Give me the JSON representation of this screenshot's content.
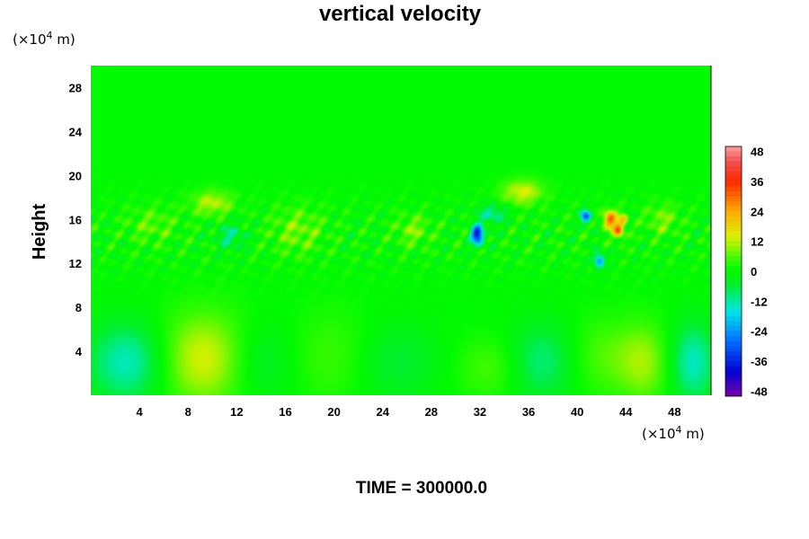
{
  "chart_data": {
    "type": "heatmap",
    "title": "vertical velocity",
    "ylabel": "Height",
    "x_unit_prefix": "(×10",
    "x_unit_exp": "4",
    "x_unit_suffix": " m)",
    "y_unit_prefix": "(×10",
    "y_unit_exp": "4",
    "y_unit_suffix": " m)",
    "xlim": [
      0,
      51
    ],
    "ylim": [
      0,
      30
    ],
    "xticks": [
      4,
      8,
      12,
      16,
      20,
      24,
      28,
      32,
      36,
      40,
      44,
      48
    ],
    "yticks": [
      4,
      8,
      12,
      16,
      20,
      24,
      28
    ],
    "colorbar": {
      "range": [
        -50,
        50
      ],
      "ticks": [
        48,
        36,
        24,
        12,
        0,
        -12,
        -24,
        -36,
        -48
      ]
    },
    "features": [
      {
        "x": 3.0,
        "y": 3.0,
        "value": -14,
        "sx": 2.2,
        "sy": 2.5
      },
      {
        "x": 9.3,
        "y": 3.3,
        "value": 14,
        "sx": 2.6,
        "sy": 3.0
      },
      {
        "x": 14.0,
        "y": 3.0,
        "value": -6,
        "sx": 2.0,
        "sy": 2.5
      },
      {
        "x": 20.0,
        "y": 3.5,
        "value": 5,
        "sx": 2.5,
        "sy": 3.0
      },
      {
        "x": 25.0,
        "y": 3.0,
        "value": -6,
        "sx": 2.5,
        "sy": 2.5
      },
      {
        "x": 33.0,
        "y": 2.5,
        "value": 6,
        "sx": 2.0,
        "sy": 2.0
      },
      {
        "x": 37.0,
        "y": 3.0,
        "value": -10,
        "sx": 2.0,
        "sy": 2.5
      },
      {
        "x": 42.0,
        "y": 3.5,
        "value": 6,
        "sx": 2.0,
        "sy": 2.5
      },
      {
        "x": 45.5,
        "y": 3.0,
        "value": 10,
        "sx": 1.5,
        "sy": 2.5
      },
      {
        "x": 49.5,
        "y": 3.0,
        "value": -14,
        "sx": 1.3,
        "sy": 2.5
      },
      {
        "x": 10.0,
        "y": 17.5,
        "value": 12,
        "sx": 1.2,
        "sy": 0.8
      },
      {
        "x": 17.0,
        "y": 15.0,
        "value": 8,
        "sx": 1.5,
        "sy": 1.5
      },
      {
        "x": 11.5,
        "y": 14.5,
        "value": -10,
        "sx": 0.8,
        "sy": 0.8
      },
      {
        "x": 31.8,
        "y": 14.6,
        "value": -40,
        "sx": 0.35,
        "sy": 0.6
      },
      {
        "x": 33.0,
        "y": 16.5,
        "value": -12,
        "sx": 0.8,
        "sy": 0.6
      },
      {
        "x": 35.5,
        "y": 18.5,
        "value": 14,
        "sx": 1.2,
        "sy": 0.8
      },
      {
        "x": 40.7,
        "y": 16.3,
        "value": -30,
        "sx": 0.3,
        "sy": 0.4
      },
      {
        "x": 42.7,
        "y": 16.0,
        "value": 30,
        "sx": 0.4,
        "sy": 0.6
      },
      {
        "x": 43.4,
        "y": 15.0,
        "value": 28,
        "sx": 0.3,
        "sy": 0.5
      },
      {
        "x": 43.8,
        "y": 16.0,
        "value": 18,
        "sx": 0.25,
        "sy": 0.4
      },
      {
        "x": 41.8,
        "y": 12.3,
        "value": -24,
        "sx": 0.3,
        "sy": 0.5
      },
      {
        "x": 5.0,
        "y": 15.5,
        "value": 6,
        "sx": 1.5,
        "sy": 1.2
      },
      {
        "x": 26.5,
        "y": 15.0,
        "value": 8,
        "sx": 1.0,
        "sy": 1.0
      },
      {
        "x": 47.0,
        "y": 16.0,
        "value": 8,
        "sx": 1.0,
        "sy": 1.0
      }
    ]
  },
  "footer": {
    "time_label": "TIME = 300000.0"
  }
}
